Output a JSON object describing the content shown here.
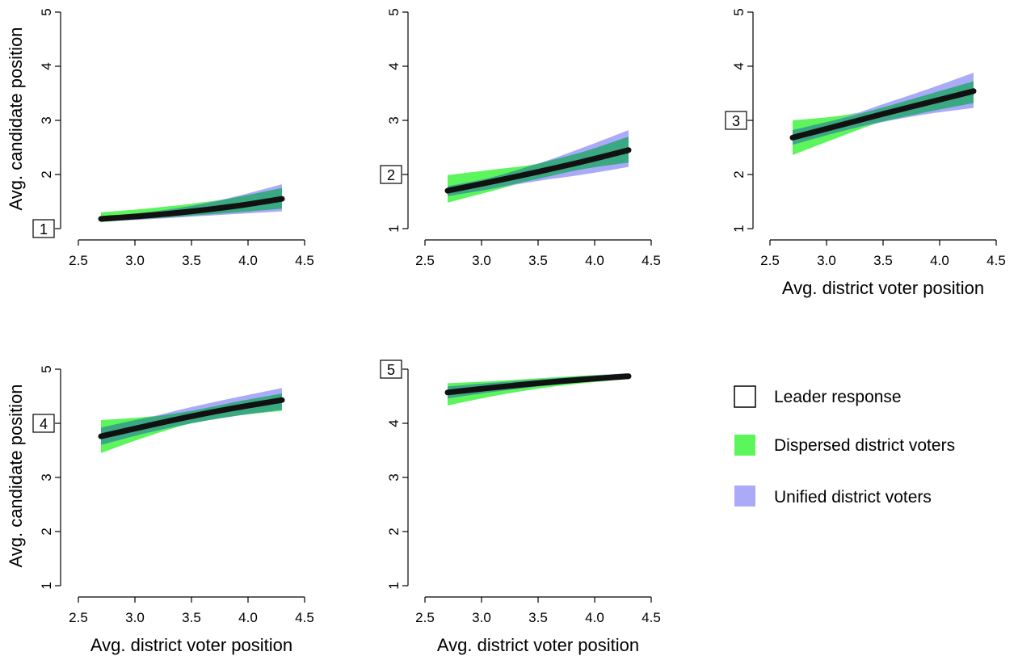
{
  "figure": {
    "legend": {
      "items": [
        {
          "key": "leader",
          "label": "Leader response",
          "color": "#ffffff",
          "stroke": "#000000"
        },
        {
          "key": "dispersed",
          "label": "Dispersed district voters",
          "color": "#5cf55c"
        },
        {
          "key": "unified",
          "label": "Unified district voters",
          "color": "#aaaaf8"
        }
      ],
      "placement": "bottom-right"
    },
    "colors": {
      "dispersed": "#5cf55c",
      "unified": "#aaaaf8",
      "overlap": "#3aa882",
      "line": "#111111"
    }
  },
  "chart_data": [
    {
      "type": "area",
      "panel_label": "1",
      "ylabel": "Avg. candidate position",
      "xlabel": "",
      "xlim": [
        2.5,
        4.5
      ],
      "ylim": [
        1,
        5
      ],
      "xticks": [
        "2.5",
        "3.0",
        "3.5",
        "4.0",
        "4.5"
      ],
      "yticks": [
        "1",
        "2",
        "3",
        "4",
        "5"
      ],
      "x": [
        2.7,
        3.1,
        3.5,
        3.9,
        4.3
      ],
      "series": [
        {
          "key": "leader",
          "values": [
            1.18,
            1.24,
            1.32,
            1.42,
            1.55
          ]
        },
        {
          "key": "dispersed",
          "lower": [
            1.12,
            1.18,
            1.24,
            1.3,
            1.37
          ],
          "upper": [
            1.3,
            1.37,
            1.46,
            1.58,
            1.75
          ]
        },
        {
          "key": "unified",
          "lower": [
            1.13,
            1.17,
            1.22,
            1.27,
            1.32
          ],
          "upper": [
            1.22,
            1.3,
            1.42,
            1.6,
            1.82
          ]
        }
      ]
    },
    {
      "type": "area",
      "panel_label": "2",
      "ylabel": "",
      "xlabel": "",
      "xlim": [
        2.5,
        4.5
      ],
      "ylim": [
        1,
        5
      ],
      "xticks": [
        "2.5",
        "3.0",
        "3.5",
        "4.0",
        "4.5"
      ],
      "yticks": [
        "1",
        "2",
        "3",
        "4",
        "5"
      ],
      "x": [
        2.7,
        3.1,
        3.5,
        3.9,
        4.3
      ],
      "series": [
        {
          "key": "leader",
          "values": [
            1.7,
            1.87,
            2.05,
            2.24,
            2.45
          ]
        },
        {
          "key": "dispersed",
          "lower": [
            1.48,
            1.7,
            1.92,
            2.1,
            2.22
          ],
          "upper": [
            1.99,
            2.09,
            2.2,
            2.42,
            2.7
          ]
        },
        {
          "key": "unified",
          "lower": [
            1.6,
            1.74,
            1.88,
            2.0,
            2.14
          ],
          "upper": [
            1.78,
            1.95,
            2.2,
            2.5,
            2.82
          ]
        }
      ]
    },
    {
      "type": "area",
      "panel_label": "3",
      "ylabel": "",
      "xlabel": "Avg. district voter position",
      "xlim": [
        2.5,
        4.5
      ],
      "ylim": [
        1,
        5
      ],
      "xticks": [
        "2.5",
        "3.0",
        "3.5",
        "4.0",
        "4.5"
      ],
      "yticks": [
        "1",
        "2",
        "3",
        "4",
        "5"
      ],
      "x": [
        2.7,
        3.1,
        3.5,
        3.9,
        4.3
      ],
      "series": [
        {
          "key": "leader",
          "values": [
            2.68,
            2.9,
            3.12,
            3.33,
            3.54
          ]
        },
        {
          "key": "dispersed",
          "lower": [
            2.36,
            2.68,
            2.98,
            3.16,
            3.32
          ],
          "upper": [
            3.0,
            3.08,
            3.24,
            3.48,
            3.72
          ]
        },
        {
          "key": "unified",
          "lower": [
            2.55,
            2.78,
            2.97,
            3.12,
            3.23
          ],
          "upper": [
            2.82,
            3.02,
            3.3,
            3.58,
            3.88
          ]
        }
      ]
    },
    {
      "type": "area",
      "panel_label": "4",
      "ylabel": "Avg. candidate position",
      "xlabel": "Avg. district voter position",
      "xlim": [
        2.5,
        4.5
      ],
      "ylim": [
        1,
        5
      ],
      "xticks": [
        "2.5",
        "3.0",
        "3.5",
        "4.0",
        "4.5"
      ],
      "yticks": [
        "1",
        "2",
        "3",
        "4",
        "5"
      ],
      "x": [
        2.7,
        3.1,
        3.5,
        3.9,
        4.3
      ],
      "series": [
        {
          "key": "leader",
          "values": [
            3.76,
            3.95,
            4.13,
            4.29,
            4.43
          ]
        },
        {
          "key": "dispersed",
          "lower": [
            3.45,
            3.75,
            4.0,
            4.14,
            4.23
          ],
          "upper": [
            4.06,
            4.12,
            4.23,
            4.4,
            4.55
          ]
        },
        {
          "key": "unified",
          "lower": [
            3.6,
            3.82,
            4.0,
            4.14,
            4.25
          ],
          "upper": [
            3.92,
            4.1,
            4.3,
            4.48,
            4.65
          ]
        }
      ]
    },
    {
      "type": "area",
      "panel_label": "5",
      "ylabel": "",
      "xlabel": "Avg. district voter position",
      "xlim": [
        2.5,
        4.5
      ],
      "ylim": [
        1,
        5
      ],
      "xticks": [
        "2.5",
        "3.0",
        "3.5",
        "4.0",
        "4.5"
      ],
      "yticks": [
        "1",
        "2",
        "3",
        "4",
        "5"
      ],
      "x": [
        2.7,
        3.1,
        3.5,
        3.9,
        4.3
      ],
      "series": [
        {
          "key": "leader",
          "values": [
            4.57,
            4.66,
            4.74,
            4.81,
            4.87
          ]
        },
        {
          "key": "dispersed",
          "lower": [
            4.33,
            4.5,
            4.64,
            4.74,
            4.82
          ],
          "upper": [
            4.74,
            4.78,
            4.83,
            4.88,
            4.92
          ]
        },
        {
          "key": "unified",
          "lower": [
            4.46,
            4.58,
            4.68,
            4.76,
            4.82
          ],
          "upper": [
            4.68,
            4.75,
            4.81,
            4.87,
            4.93
          ]
        }
      ]
    }
  ]
}
